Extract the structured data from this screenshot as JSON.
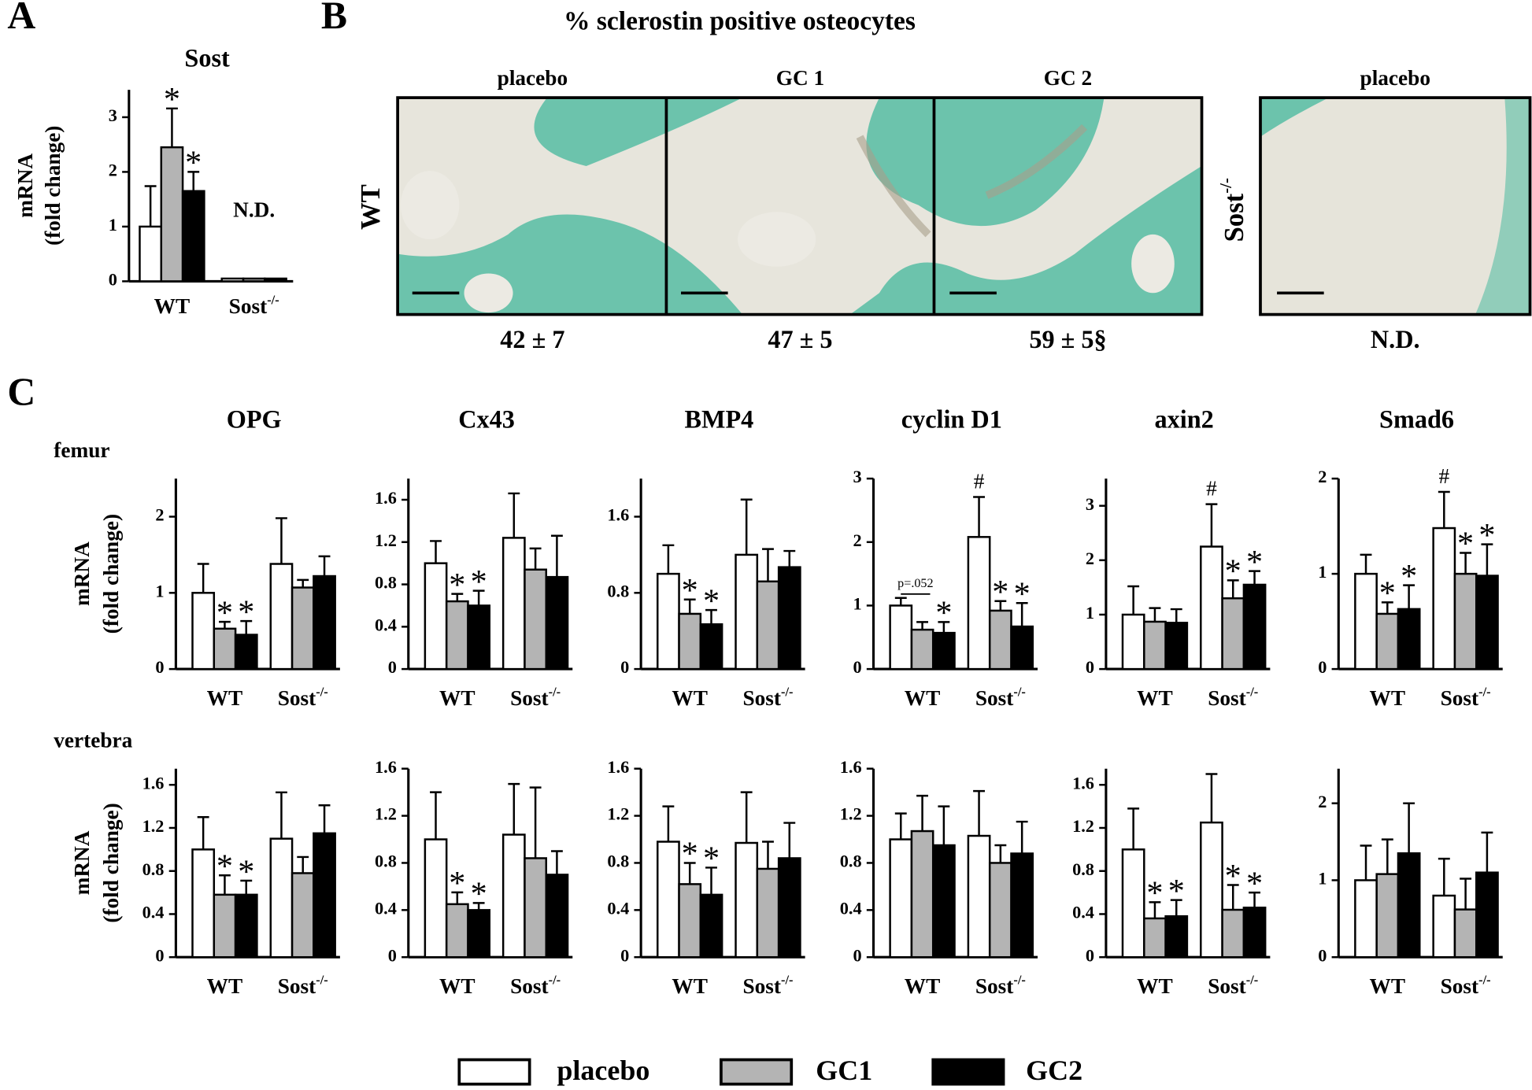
{
  "panel_letters": [
    "A",
    "B",
    "C"
  ],
  "row_labels": [
    "femur",
    "vertebra"
  ],
  "legend": [
    {
      "name": "placebo",
      "color": "#ffffff"
    },
    {
      "name": "GC1",
      "color": "#b4b4b4"
    },
    {
      "name": "GC2",
      "color": "#000000"
    }
  ],
  "panel_b": {
    "title": "% sclerostin positive osteocytes",
    "row_labels": [
      {
        "text": "WT"
      },
      {
        "text": "Sost",
        "sup": "-/-"
      }
    ],
    "columns": [
      {
        "label": "placebo",
        "value": "42 ± 7"
      },
      {
        "label": "GC 1",
        "value": "47 ± 5"
      },
      {
        "label": "GC 2",
        "value": "59 ± 5§"
      },
      {
        "label": "placebo",
        "value": "N.D."
      }
    ]
  },
  "chart_data": [
    {
      "type": "bar",
      "title": "Sost",
      "ylabel": [
        "mRNA",
        "(fold change)"
      ],
      "categories": [
        {
          "text": "WT"
        },
        {
          "text": "Sost",
          "sup": "-/-"
        }
      ],
      "ylim": [
        0,
        3.5
      ],
      "yticks": [
        0,
        1,
        2,
        3
      ],
      "nd_label": "N.D.",
      "series": [
        {
          "values": [
            1.0,
            0.05
          ],
          "errors": [
            0.74,
            null
          ],
          "markers": [
            null,
            null
          ]
        },
        {
          "values": [
            2.45,
            0.05
          ],
          "errors": [
            0.71,
            null
          ],
          "markers": [
            "*",
            null
          ]
        },
        {
          "values": [
            1.65,
            0.05
          ],
          "errors": [
            0.35,
            null
          ],
          "markers": [
            "*",
            null
          ]
        }
      ]
    },
    {
      "type": "bar",
      "title": "OPG",
      "ylabel": [
        "mRNA",
        "(fold change)"
      ],
      "categories": [
        {
          "text": "WT"
        },
        {
          "text": "Sost",
          "sup": "-/-"
        }
      ],
      "ylim": [
        0,
        2.5
      ],
      "yticks": [
        0,
        1,
        2
      ],
      "series": [
        {
          "values": [
            1.0,
            1.38
          ],
          "errors": [
            0.38,
            0.6
          ],
          "markers": [
            null,
            null
          ]
        },
        {
          "values": [
            0.53,
            1.07
          ],
          "errors": [
            0.09,
            0.1
          ],
          "markers": [
            "*",
            null
          ]
        },
        {
          "values": [
            0.45,
            1.22
          ],
          "errors": [
            0.18,
            0.26
          ],
          "markers": [
            "*",
            null
          ]
        }
      ]
    },
    {
      "type": "bar",
      "title": "Cx43",
      "categories": [
        {
          "text": "WT"
        },
        {
          "text": "Sost",
          "sup": "-/-"
        }
      ],
      "ylim": [
        0,
        1.8
      ],
      "yticks": [
        0,
        0.4,
        0.8,
        1.2,
        1.6
      ],
      "series": [
        {
          "values": [
            1.0,
            1.24
          ],
          "errors": [
            0.21,
            0.42
          ],
          "markers": [
            null,
            null
          ]
        },
        {
          "values": [
            0.64,
            0.94
          ],
          "errors": [
            0.07,
            0.2
          ],
          "markers": [
            "*",
            null
          ]
        },
        {
          "values": [
            0.6,
            0.87
          ],
          "errors": [
            0.14,
            0.39
          ],
          "markers": [
            "*",
            null
          ]
        }
      ]
    },
    {
      "type": "bar",
      "title": "BMP4",
      "categories": [
        {
          "text": "WT"
        },
        {
          "text": "Sost",
          "sup": "-/-"
        }
      ],
      "ylim": [
        0,
        2
      ],
      "yticks": [
        0,
        0.8,
        1.6
      ],
      "series": [
        {
          "values": [
            1.0,
            1.2
          ],
          "errors": [
            0.3,
            0.58
          ],
          "markers": [
            null,
            null
          ]
        },
        {
          "values": [
            0.58,
            0.92
          ],
          "errors": [
            0.15,
            0.34
          ],
          "markers": [
            "*",
            null
          ]
        },
        {
          "values": [
            0.47,
            1.07
          ],
          "errors": [
            0.15,
            0.17
          ],
          "markers": [
            "*",
            null
          ]
        }
      ]
    },
    {
      "type": "bar",
      "title": "cyclin D1",
      "bracket": "p=.052",
      "categories": [
        {
          "text": "WT"
        },
        {
          "text": "Sost",
          "sup": "-/-"
        }
      ],
      "ylim": [
        0,
        3
      ],
      "yticks": [
        0,
        1,
        2,
        3
      ],
      "series": [
        {
          "values": [
            1.0,
            2.08
          ],
          "errors": [
            0.12,
            0.63
          ],
          "markers": [
            null,
            "#"
          ]
        },
        {
          "values": [
            0.62,
            0.92
          ],
          "errors": [
            0.12,
            0.15
          ],
          "markers": [
            null,
            "*"
          ]
        },
        {
          "values": [
            0.57,
            0.67
          ],
          "errors": [
            0.17,
            0.37
          ],
          "markers": [
            "*",
            "*"
          ]
        }
      ]
    },
    {
      "type": "bar",
      "title": "axin2",
      "categories": [
        {
          "text": "WT"
        },
        {
          "text": "Sost",
          "sup": "-/-"
        }
      ],
      "ylim": [
        0,
        3.5
      ],
      "yticks": [
        0,
        1,
        2,
        3
      ],
      "series": [
        {
          "values": [
            1.0,
            2.25
          ],
          "errors": [
            0.52,
            0.78
          ],
          "markers": [
            null,
            "#"
          ]
        },
        {
          "values": [
            0.87,
            1.3
          ],
          "errors": [
            0.25,
            0.33
          ],
          "markers": [
            null,
            "*"
          ]
        },
        {
          "values": [
            0.85,
            1.55
          ],
          "errors": [
            0.25,
            0.25
          ],
          "markers": [
            null,
            "*"
          ]
        }
      ]
    },
    {
      "type": "bar",
      "title": "Smad6",
      "categories": [
        {
          "text": "WT"
        },
        {
          "text": "Sost",
          "sup": "-/-"
        }
      ],
      "ylim": [
        0,
        2
      ],
      "yticks": [
        0,
        1,
        2
      ],
      "series": [
        {
          "values": [
            1.0,
            1.48
          ],
          "errors": [
            0.2,
            0.38
          ],
          "markers": [
            null,
            "#"
          ]
        },
        {
          "values": [
            0.58,
            1.0
          ],
          "errors": [
            0.12,
            0.22
          ],
          "markers": [
            "*",
            "*"
          ]
        },
        {
          "values": [
            0.63,
            0.98
          ],
          "errors": [
            0.25,
            0.33
          ],
          "markers": [
            "*",
            "*"
          ]
        }
      ]
    },
    {
      "type": "bar",
      "ylabel": [
        "mRNA",
        "(fold change)"
      ],
      "categories": [
        {
          "text": "WT"
        },
        {
          "text": "Sost",
          "sup": "-/-"
        }
      ],
      "ylim": [
        0,
        1.75
      ],
      "yticks": [
        0,
        0.4,
        0.8,
        1.2,
        1.6
      ],
      "series": [
        {
          "values": [
            1.0,
            1.1
          ],
          "errors": [
            0.3,
            0.43
          ],
          "markers": [
            null,
            null
          ]
        },
        {
          "values": [
            0.58,
            0.78
          ],
          "errors": [
            0.18,
            0.15
          ],
          "markers": [
            "*",
            null
          ]
        },
        {
          "values": [
            0.58,
            1.15
          ],
          "errors": [
            0.13,
            0.26
          ],
          "markers": [
            "*",
            null
          ]
        }
      ]
    },
    {
      "type": "bar",
      "categories": [
        {
          "text": "WT"
        },
        {
          "text": "Sost",
          "sup": "-/-"
        }
      ],
      "ylim": [
        0,
        1.6
      ],
      "yticks": [
        0,
        0.4,
        0.8,
        1.2,
        1.6
      ],
      "series": [
        {
          "values": [
            1.0,
            1.04
          ],
          "errors": [
            0.4,
            0.43
          ],
          "markers": [
            null,
            null
          ]
        },
        {
          "values": [
            0.45,
            0.84
          ],
          "errors": [
            0.1,
            0.6
          ],
          "markers": [
            "*",
            null
          ]
        },
        {
          "values": [
            0.4,
            0.7
          ],
          "errors": [
            0.06,
            0.2
          ],
          "markers": [
            "*",
            null
          ]
        }
      ]
    },
    {
      "type": "bar",
      "categories": [
        {
          "text": "WT"
        },
        {
          "text": "Sost",
          "sup": "-/-"
        }
      ],
      "ylim": [
        0,
        1.6
      ],
      "yticks": [
        0,
        0.4,
        0.8,
        1.2,
        1.6
      ],
      "series": [
        {
          "values": [
            0.98,
            0.97
          ],
          "errors": [
            0.3,
            0.43
          ],
          "markers": [
            null,
            null
          ]
        },
        {
          "values": [
            0.62,
            0.75
          ],
          "errors": [
            0.18,
            0.23
          ],
          "markers": [
            "*",
            null
          ]
        },
        {
          "values": [
            0.53,
            0.84
          ],
          "errors": [
            0.23,
            0.3
          ],
          "markers": [
            "*",
            null
          ]
        }
      ]
    },
    {
      "type": "bar",
      "categories": [
        {
          "text": "WT"
        },
        {
          "text": "Sost",
          "sup": "-/-"
        }
      ],
      "ylim": [
        0,
        1.6
      ],
      "yticks": [
        0,
        0.4,
        0.8,
        1.2,
        1.6
      ],
      "series": [
        {
          "values": [
            1.0,
            1.03
          ],
          "errors": [
            0.22,
            0.38
          ],
          "markers": [
            null,
            null
          ]
        },
        {
          "values": [
            1.07,
            0.8
          ],
          "errors": [
            0.3,
            0.15
          ],
          "markers": [
            null,
            null
          ]
        },
        {
          "values": [
            0.95,
            0.88
          ],
          "errors": [
            0.33,
            0.27
          ],
          "markers": [
            null,
            null
          ]
        }
      ]
    },
    {
      "type": "bar",
      "categories": [
        {
          "text": "WT"
        },
        {
          "text": "Sost",
          "sup": "-/-"
        }
      ],
      "ylim": [
        0,
        1.75
      ],
      "yticks": [
        0,
        0.4,
        0.8,
        1.2,
        1.6
      ],
      "series": [
        {
          "values": [
            1.0,
            1.25
          ],
          "errors": [
            0.38,
            0.45
          ],
          "markers": [
            null,
            null
          ]
        },
        {
          "values": [
            0.36,
            0.44
          ],
          "errors": [
            0.15,
            0.23
          ],
          "markers": [
            "*",
            "*"
          ]
        },
        {
          "values": [
            0.38,
            0.46
          ],
          "errors": [
            0.15,
            0.14
          ],
          "markers": [
            "*",
            "*"
          ]
        }
      ]
    },
    {
      "type": "bar",
      "categories": [
        {
          "text": "WT"
        },
        {
          "text": "Sost",
          "sup": "-/-"
        }
      ],
      "ylim": [
        0,
        2.45
      ],
      "yticks": [
        0,
        1,
        2
      ],
      "series": [
        {
          "values": [
            1.0,
            0.8
          ],
          "errors": [
            0.45,
            0.48
          ],
          "markers": [
            null,
            null
          ]
        },
        {
          "values": [
            1.08,
            0.62
          ],
          "errors": [
            0.45,
            0.4
          ],
          "markers": [
            null,
            null
          ]
        },
        {
          "values": [
            1.35,
            1.1
          ],
          "errors": [
            0.65,
            0.52
          ],
          "markers": [
            null,
            null
          ]
        }
      ]
    }
  ]
}
